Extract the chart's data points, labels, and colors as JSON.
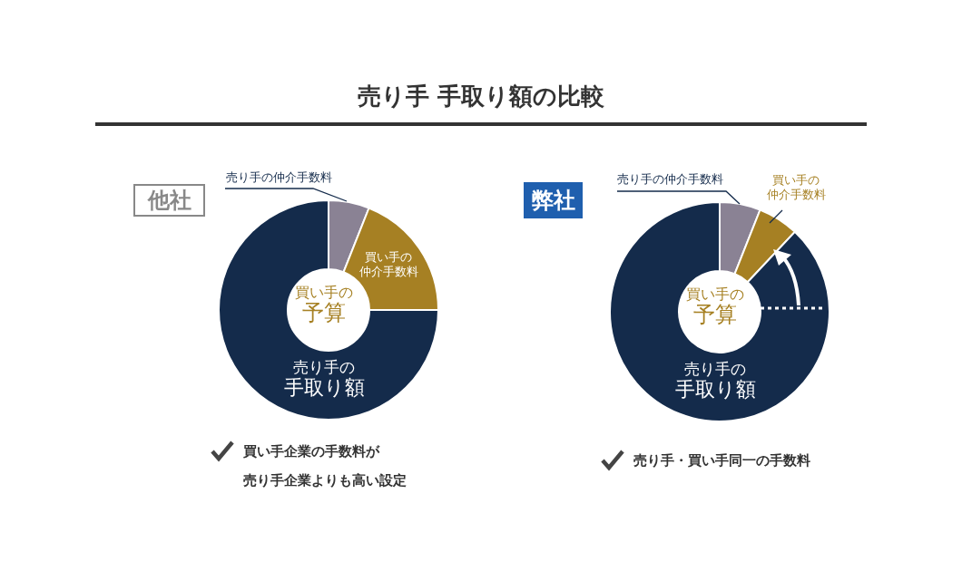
{
  "chart_data": [
    {
      "type": "donut",
      "title": "売り手 手取り額の比較",
      "subtitle": "他社",
      "categories": [
        "売り手の仲介手数料",
        "買い手の仲介手数料",
        "売り手の手取り額"
      ],
      "values": [
        6,
        19,
        75
      ],
      "colors": [
        "#8a8294",
        "#a68023",
        "#142b4b"
      ],
      "annotations": [
        "買い手の予算",
        "買い手企業の手数料が",
        "売り手企業よりも高い設定"
      ]
    },
    {
      "type": "donut",
      "subtitle": "弊社",
      "categories": [
        "売り手の仲介手数料",
        "買い手の仲介手数料",
        "売り手の手取り額"
      ],
      "values": [
        6,
        6,
        88
      ],
      "colors": [
        "#8a8294",
        "#a68023",
        "#142b4b"
      ],
      "annotations": [
        "買い手の予算",
        "売り手・買い手同一の手数料"
      ]
    }
  ]
}
